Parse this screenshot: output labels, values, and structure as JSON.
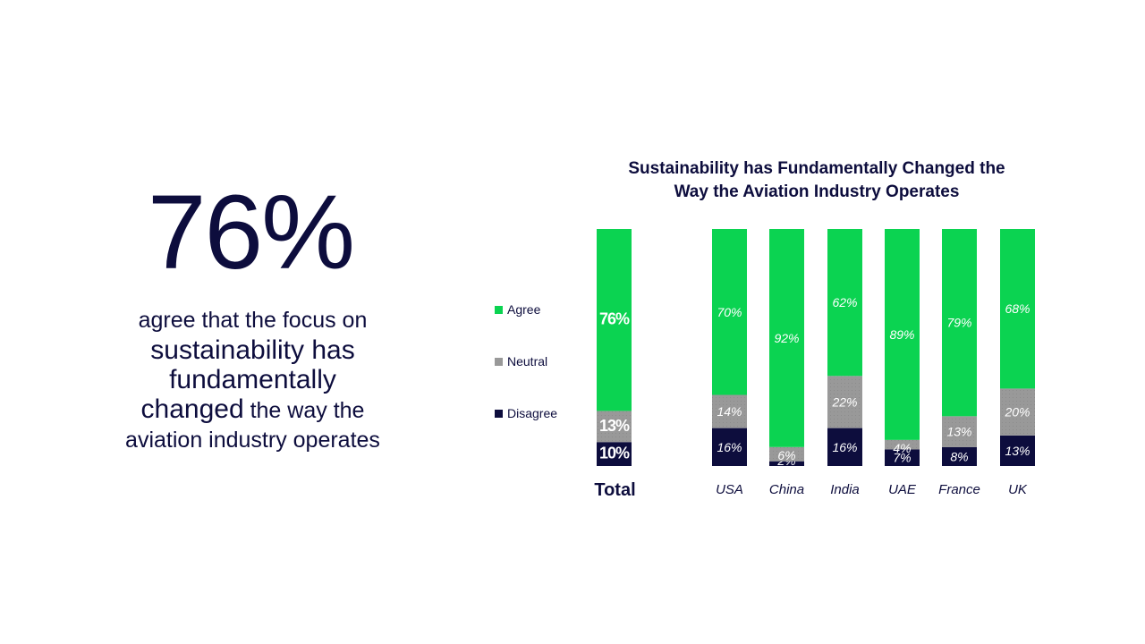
{
  "headline": {
    "stat": "76%",
    "desc_line1": "agree that the focus on",
    "desc_line2": "sustainability has",
    "desc_line3": "fundamentally",
    "desc_line4_bold": "changed",
    "desc_line4_rest": " the way the",
    "desc_line5": "aviation industry operates"
  },
  "colors": {
    "agree": "#0bd351",
    "neutral": "#999999",
    "disagree": "#0d0d3d",
    "text": "#0d0d3d"
  },
  "chart_data": {
    "type": "bar",
    "stacked": true,
    "title": "Sustainability has Fundamentally Changed the Way the Aviation Industry Operates",
    "title_line1": "Sustainability has Fundamentally Changed the",
    "title_line2": "Way the Aviation Industry Operates",
    "categories": [
      "Total",
      "USA",
      "China",
      "India",
      "UAE",
      "France",
      "UK"
    ],
    "ylim": [
      0,
      100
    ],
    "series": [
      {
        "name": "Disagree",
        "values": [
          10,
          16,
          2,
          16,
          7,
          8,
          13
        ],
        "labels": [
          "10%",
          "16%",
          "2%",
          "16%",
          "7%",
          "8%",
          "13%"
        ]
      },
      {
        "name": "Neutral",
        "values": [
          13,
          14,
          6,
          22,
          4,
          13,
          20
        ],
        "labels": [
          "13%",
          "14%",
          "6%",
          "22%",
          "4%",
          "13%",
          "20%"
        ]
      },
      {
        "name": "Agree",
        "values": [
          76,
          70,
          92,
          62,
          89,
          79,
          68
        ],
        "labels": [
          "76%",
          "70%",
          "92%",
          "62%",
          "89%",
          "79%",
          "68%"
        ]
      }
    ],
    "legend": [
      "Agree",
      "Neutral",
      "Disagree"
    ],
    "legend_position": "left",
    "grid": false
  }
}
